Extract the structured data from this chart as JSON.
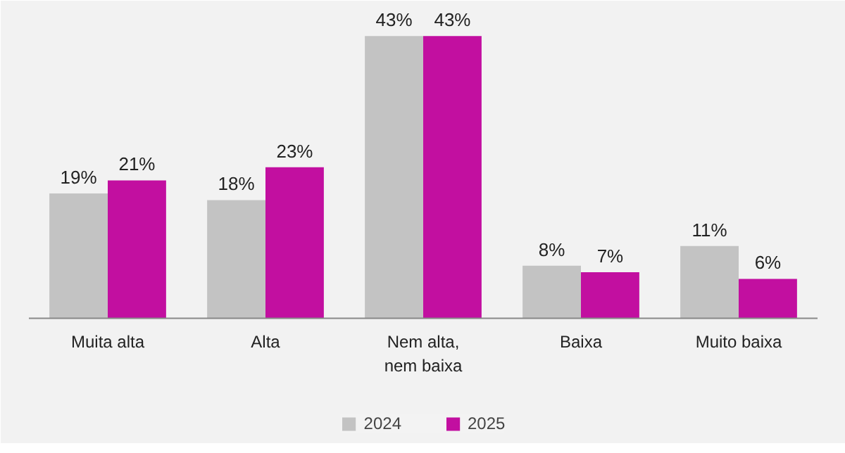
{
  "chart_data": {
    "type": "bar",
    "categories": [
      "Muita alta",
      "Alta",
      "Nem alta,\nnem baixa",
      "Baixa",
      "Muito baixa"
    ],
    "series": [
      {
        "name": "2024",
        "color": "#c3c3c3",
        "values": [
          19,
          18,
          43,
          8,
          11
        ],
        "value_labels": [
          "19%",
          "18%",
          "43%",
          "8%",
          "11%"
        ]
      },
      {
        "name": "2025",
        "color": "#c20fa0",
        "values": [
          21,
          23,
          43,
          7,
          6
        ],
        "value_labels": [
          "21%",
          "23%",
          "43%",
          "7%",
          "6%"
        ]
      }
    ],
    "legend": "bottom"
  }
}
